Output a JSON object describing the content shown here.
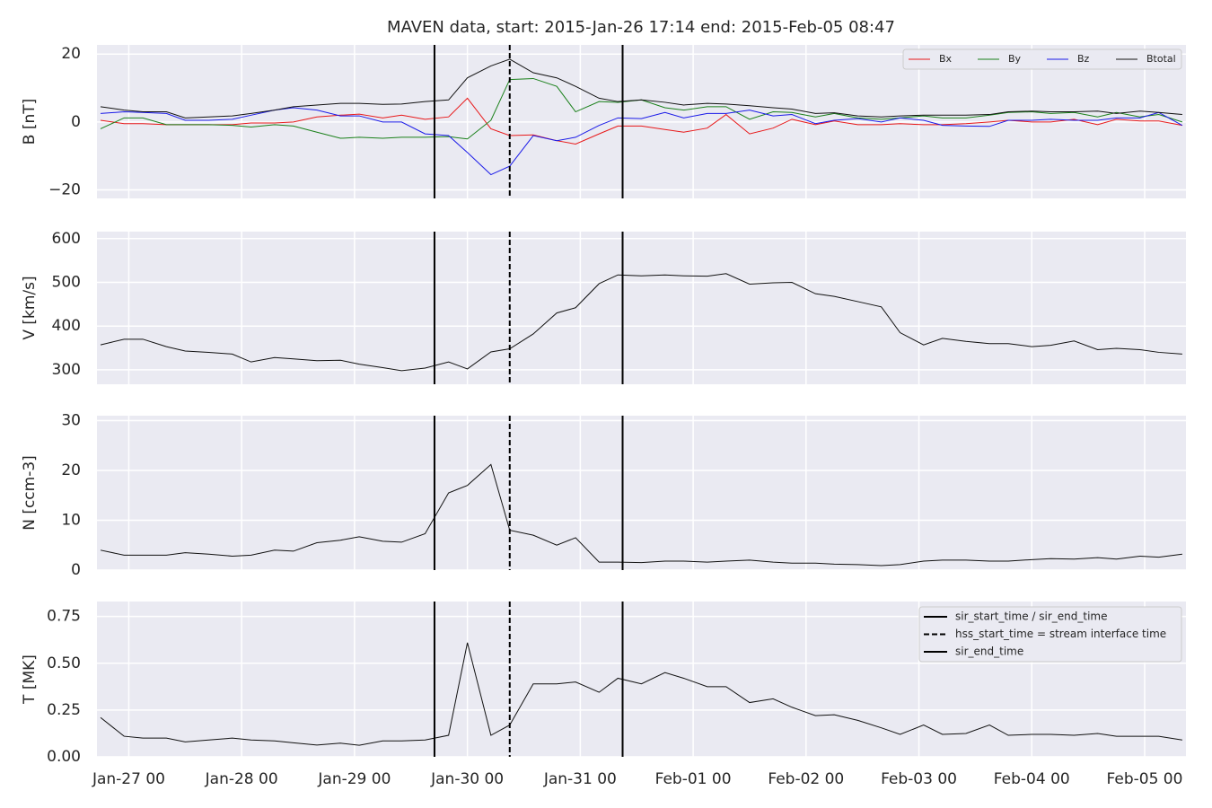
{
  "chart_data": [
    {
      "type": "line",
      "title": "MAVEN data, start: 2015-Jan-26 17:14  end: 2015-Feb-05 08:47",
      "ylabel": "B [nT]",
      "x": [
        "Jan-26 18",
        "Jan-26 23",
        "Jan-27 03",
        "Jan-27 08",
        "Jan-27 12",
        "Jan-27 17",
        "Jan-27 22",
        "Jan-28 02",
        "Jan-28 07",
        "Jan-28 11",
        "Jan-28 16",
        "Jan-28 21",
        "Jan-29 01",
        "Jan-29 06",
        "Jan-29 10",
        "Jan-29 15",
        "Jan-29 20",
        "Jan-30 00",
        "Jan-30 05",
        "Jan-30 09",
        "Jan-30 14",
        "Jan-30 19",
        "Jan-30 23",
        "Jan-31 04",
        "Jan-31 08",
        "Jan-31 13",
        "Jan-31 18",
        "Jan-31 22",
        "Feb-01 03",
        "Feb-01 07",
        "Feb-01 12",
        "Feb-01 17",
        "Feb-01 21",
        "Feb-02 02",
        "Feb-02 06",
        "Feb-02 11",
        "Feb-02 16",
        "Feb-02 20",
        "Feb-03 01",
        "Feb-03 05",
        "Feb-03 10",
        "Feb-03 15",
        "Feb-03 19",
        "Feb-04 00",
        "Feb-04 04",
        "Feb-04 09",
        "Feb-04 14",
        "Feb-04 18",
        "Feb-04 23",
        "Feb-05 03",
        "Feb-05 08"
      ],
      "series": [
        {
          "name": "Bx",
          "color": "#e8191a",
          "values": [
            0.5,
            -0.5,
            -0.5,
            -0.8,
            -0.8,
            -0.8,
            -0.8,
            -0.3,
            -0.3,
            0,
            1.5,
            2,
            2.3,
            1.2,
            2,
            0.8,
            1.5,
            7,
            -2,
            -4,
            -3.8,
            -5.5,
            -6.5,
            -3.5,
            -1.2,
            -1.2,
            -2.2,
            -3,
            -1.8,
            2.2,
            -3.5,
            -1.8,
            0.8,
            -0.8,
            0.3,
            -0.8,
            -0.8,
            -0.5,
            -0.8,
            -0.8,
            -0.5,
            0,
            0.5,
            0,
            0,
            0.8,
            -0.8,
            0.8,
            0.3,
            0.3,
            -1
          ]
        },
        {
          "name": "By",
          "color": "#1a801a",
          "values": [
            -2,
            1.2,
            1.2,
            -0.8,
            -0.8,
            -0.8,
            -1,
            -1.5,
            -0.8,
            -1.2,
            -3,
            -4.8,
            -4.5,
            -4.8,
            -4.5,
            -4.5,
            -4.3,
            -5,
            0.5,
            12.5,
            12.8,
            10.5,
            3,
            6,
            5.8,
            6.5,
            4.2,
            3.5,
            4.5,
            4.5,
            0.8,
            3,
            2.8,
            1.5,
            2.5,
            1.2,
            0.8,
            1.2,
            1.8,
            1.2,
            1.2,
            2,
            2.8,
            3,
            2.5,
            2.8,
            1.5,
            2.8,
            1.5,
            2.2,
            0
          ]
        },
        {
          "name": "Bz",
          "color": "#1a1ae8",
          "values": [
            2.5,
            3,
            2.8,
            2.5,
            0.5,
            0.5,
            0.8,
            2,
            3.5,
            4.2,
            3.5,
            1.8,
            1.8,
            0,
            0,
            -3.5,
            -4,
            -9,
            -15.5,
            -13,
            -4,
            -5.5,
            -4.5,
            -1,
            1.2,
            1,
            2.8,
            1.2,
            2.5,
            2.5,
            3.5,
            1.8,
            2.2,
            -0.5,
            0.5,
            1,
            0,
            1.2,
            0.5,
            -1,
            -1.2,
            -1.3,
            0.5,
            0.5,
            0.8,
            0.5,
            0.5,
            1.2,
            1.2,
            2.8,
            -1
          ]
        },
        {
          "name": "Btotal",
          "color": "#111111",
          "values": [
            4.5,
            3.5,
            3,
            3,
            1.2,
            1.5,
            1.8,
            2.5,
            3.5,
            4.5,
            5,
            5.5,
            5.5,
            5.2,
            5.3,
            6,
            6.5,
            13,
            16.5,
            18.5,
            14.5,
            13,
            10.5,
            7,
            6,
            6.5,
            5.8,
            5,
            5.5,
            5.3,
            4.8,
            4.2,
            3.8,
            2.5,
            2.7,
            1.8,
            1.5,
            1.8,
            2,
            2,
            2,
            2.2,
            3,
            3.2,
            3,
            3,
            3.2,
            2.5,
            3.2,
            2.8,
            2.2
          ]
        }
      ],
      "xlim": [
        "Jan-26 17:14",
        "Feb-05 08:47"
      ],
      "xticks": [
        "Jan-27 00",
        "Jan-28 00",
        "Jan-29 00",
        "Jan-30 00",
        "Jan-31 00",
        "Feb-01 00",
        "Feb-02 00",
        "Feb-03 00",
        "Feb-04 00",
        "Feb-05 00"
      ],
      "xticklabels": false,
      "ylim": [
        -22.5,
        22.7
      ],
      "yticks": [
        {
          "value": -20,
          "label": "−20"
        },
        0,
        20
      ],
      "grid": true,
      "legend": "upper right"
    },
    {
      "type": "line",
      "ylabel": "V [km/s]",
      "x": [
        "Jan-26 18",
        "Jan-26 23",
        "Jan-27 03",
        "Jan-27 08",
        "Jan-27 12",
        "Jan-27 17",
        "Jan-27 22",
        "Jan-28 02",
        "Jan-28 07",
        "Jan-28 11",
        "Jan-28 16",
        "Jan-28 21",
        "Jan-29 01",
        "Jan-29 06",
        "Jan-29 10",
        "Jan-29 15",
        "Jan-29 20",
        "Jan-30 00",
        "Jan-30 05",
        "Jan-30 09",
        "Jan-30 14",
        "Jan-30 19",
        "Jan-30 23",
        "Jan-31 04",
        "Jan-31 08",
        "Jan-31 13",
        "Jan-31 18",
        "Jan-31 22",
        "Feb-01 03",
        "Feb-01 07",
        "Feb-01 12",
        "Feb-01 17",
        "Feb-01 21",
        "Feb-02 02",
        "Feb-02 06",
        "Feb-02 11",
        "Feb-02 16",
        "Feb-02 20",
        "Feb-03 01",
        "Feb-03 05",
        "Feb-03 10",
        "Feb-03 15",
        "Feb-03 19",
        "Feb-04 00",
        "Feb-04 04",
        "Feb-04 09",
        "Feb-04 14",
        "Feb-04 18",
        "Feb-04 23",
        "Feb-05 03",
        "Feb-05 08"
      ],
      "values": [
        357,
        370,
        370,
        353,
        343,
        340,
        336,
        318,
        328,
        325,
        321,
        322,
        313,
        305,
        298,
        304,
        318,
        302,
        341,
        348,
        382,
        430,
        442,
        497,
        517,
        515,
        517,
        515,
        514,
        520,
        496,
        499,
        500,
        474,
        468,
        456,
        444,
        385,
        357,
        372,
        365,
        360,
        360,
        353,
        356,
        366,
        346,
        349,
        346,
        340,
        336
      ],
      "color": "#111111",
      "xlim": [
        "Jan-26 17:14",
        "Feb-05 08:47"
      ],
      "xticks": [
        "Jan-27 00",
        "Jan-28 00",
        "Jan-29 00",
        "Jan-30 00",
        "Jan-31 00",
        "Feb-01 00",
        "Feb-02 00",
        "Feb-03 00",
        "Feb-04 00",
        "Feb-05 00"
      ],
      "xticklabels": false,
      "ylim": [
        267,
        616
      ],
      "yticks": [
        300,
        400,
        500,
        600
      ],
      "grid": true
    },
    {
      "type": "line",
      "ylabel": "N [ccm-3]",
      "x": [
        "Jan-26 18",
        "Jan-26 23",
        "Jan-27 03",
        "Jan-27 08",
        "Jan-27 12",
        "Jan-27 17",
        "Jan-27 22",
        "Jan-28 02",
        "Jan-28 07",
        "Jan-28 11",
        "Jan-28 16",
        "Jan-28 21",
        "Jan-29 01",
        "Jan-29 06",
        "Jan-29 10",
        "Jan-29 15",
        "Jan-29 20",
        "Jan-30 00",
        "Jan-30 05",
        "Jan-30 09",
        "Jan-30 14",
        "Jan-30 19",
        "Jan-30 23",
        "Jan-31 04",
        "Jan-31 08",
        "Jan-31 13",
        "Jan-31 18",
        "Jan-31 22",
        "Feb-01 03",
        "Feb-01 07",
        "Feb-01 12",
        "Feb-01 17",
        "Feb-01 21",
        "Feb-02 02",
        "Feb-02 06",
        "Feb-02 11",
        "Feb-02 16",
        "Feb-02 20",
        "Feb-03 01",
        "Feb-03 05",
        "Feb-03 10",
        "Feb-03 15",
        "Feb-03 19",
        "Feb-04 00",
        "Feb-04 04",
        "Feb-04 09",
        "Feb-04 14",
        "Feb-04 18",
        "Feb-04 23",
        "Feb-05 03",
        "Feb-05 08"
      ],
      "values": [
        4,
        3,
        3,
        3,
        3.5,
        3.2,
        2.8,
        3,
        4,
        3.8,
        5.5,
        6,
        6.7,
        5.8,
        5.6,
        7.3,
        15.5,
        17,
        21.2,
        8,
        7,
        5,
        6.5,
        1.6,
        1.6,
        1.5,
        1.8,
        1.8,
        1.6,
        1.8,
        2,
        1.6,
        1.4,
        1.4,
        1.2,
        1.1,
        0.9,
        1.1,
        1.8,
        2,
        2,
        1.8,
        1.8,
        2.1,
        2.3,
        2.2,
        2.5,
        2.2,
        2.8,
        2.6,
        3.2
      ],
      "color": "#111111",
      "xlim": [
        "Jan-26 17:14",
        "Feb-05 08:47"
      ],
      "xticks": [
        "Jan-27 00",
        "Jan-28 00",
        "Jan-29 00",
        "Jan-30 00",
        "Jan-31 00",
        "Feb-01 00",
        "Feb-02 00",
        "Feb-03 00",
        "Feb-04 00",
        "Feb-05 00"
      ],
      "xticklabels": false,
      "ylim": [
        0,
        31
      ],
      "yticks": [
        0,
        10,
        20,
        30
      ],
      "grid": true
    },
    {
      "type": "line",
      "ylabel": "T [MK]",
      "x": [
        "Jan-26 18",
        "Jan-26 23",
        "Jan-27 03",
        "Jan-27 08",
        "Jan-27 12",
        "Jan-27 17",
        "Jan-27 22",
        "Jan-28 02",
        "Jan-28 07",
        "Jan-28 11",
        "Jan-28 16",
        "Jan-28 21",
        "Jan-29 01",
        "Jan-29 06",
        "Jan-29 10",
        "Jan-29 15",
        "Jan-29 20",
        "Jan-30 00",
        "Jan-30 05",
        "Jan-30 09",
        "Jan-30 14",
        "Jan-30 19",
        "Jan-30 23",
        "Jan-31 04",
        "Jan-31 08",
        "Jan-31 13",
        "Jan-31 18",
        "Jan-31 22",
        "Feb-01 03",
        "Feb-01 07",
        "Feb-01 12",
        "Feb-01 17",
        "Feb-01 21",
        "Feb-02 02",
        "Feb-02 06",
        "Feb-02 11",
        "Feb-02 16",
        "Feb-02 20",
        "Feb-03 01",
        "Feb-03 05",
        "Feb-03 10",
        "Feb-03 15",
        "Feb-03 19",
        "Feb-04 00",
        "Feb-04 04",
        "Feb-04 09",
        "Feb-04 14",
        "Feb-04 18",
        "Feb-04 23",
        "Feb-05 03",
        "Feb-05 08"
      ],
      "values": [
        0.21,
        0.11,
        0.1,
        0.1,
        0.08,
        0.09,
        0.1,
        0.09,
        0.085,
        0.075,
        0.063,
        0.073,
        0.062,
        0.085,
        0.085,
        0.09,
        0.115,
        0.61,
        0.115,
        0.17,
        0.39,
        0.39,
        0.4,
        0.345,
        0.42,
        0.39,
        0.45,
        0.42,
        0.375,
        0.375,
        0.29,
        0.31,
        0.265,
        0.22,
        0.225,
        0.195,
        0.155,
        0.12,
        0.17,
        0.12,
        0.125,
        0.17,
        0.115,
        0.12,
        0.12,
        0.115,
        0.125,
        0.11,
        0.11,
        0.11,
        0.09
      ],
      "color": "#111111",
      "xlim": [
        "Jan-26 17:14",
        "Feb-05 08:47"
      ],
      "xticks": [
        "Jan-27 00",
        "Jan-28 00",
        "Jan-29 00",
        "Jan-30 00",
        "Jan-31 00",
        "Feb-01 00",
        "Feb-02 00",
        "Feb-03 00",
        "Feb-04 00",
        "Feb-05 00"
      ],
      "xticklabels": true,
      "ylim": [
        0,
        0.83
      ],
      "yticks": [
        {
          "value": 0,
          "label": "0.00"
        },
        0.25,
        {
          "value": 0.5,
          "label": "0.50"
        },
        0.75
      ],
      "grid": true,
      "markers": [
        {
          "name": "sir_start_time / sir_end_time",
          "x": "Jan-29 17",
          "dash": false
        },
        {
          "name": "hss_start_time = stream interface time",
          "x": "Jan-30 09",
          "dash": true
        },
        {
          "name": "sir_end_time",
          "x": "Jan-31 09",
          "dash": false
        }
      ],
      "legend": "upper right"
    }
  ]
}
